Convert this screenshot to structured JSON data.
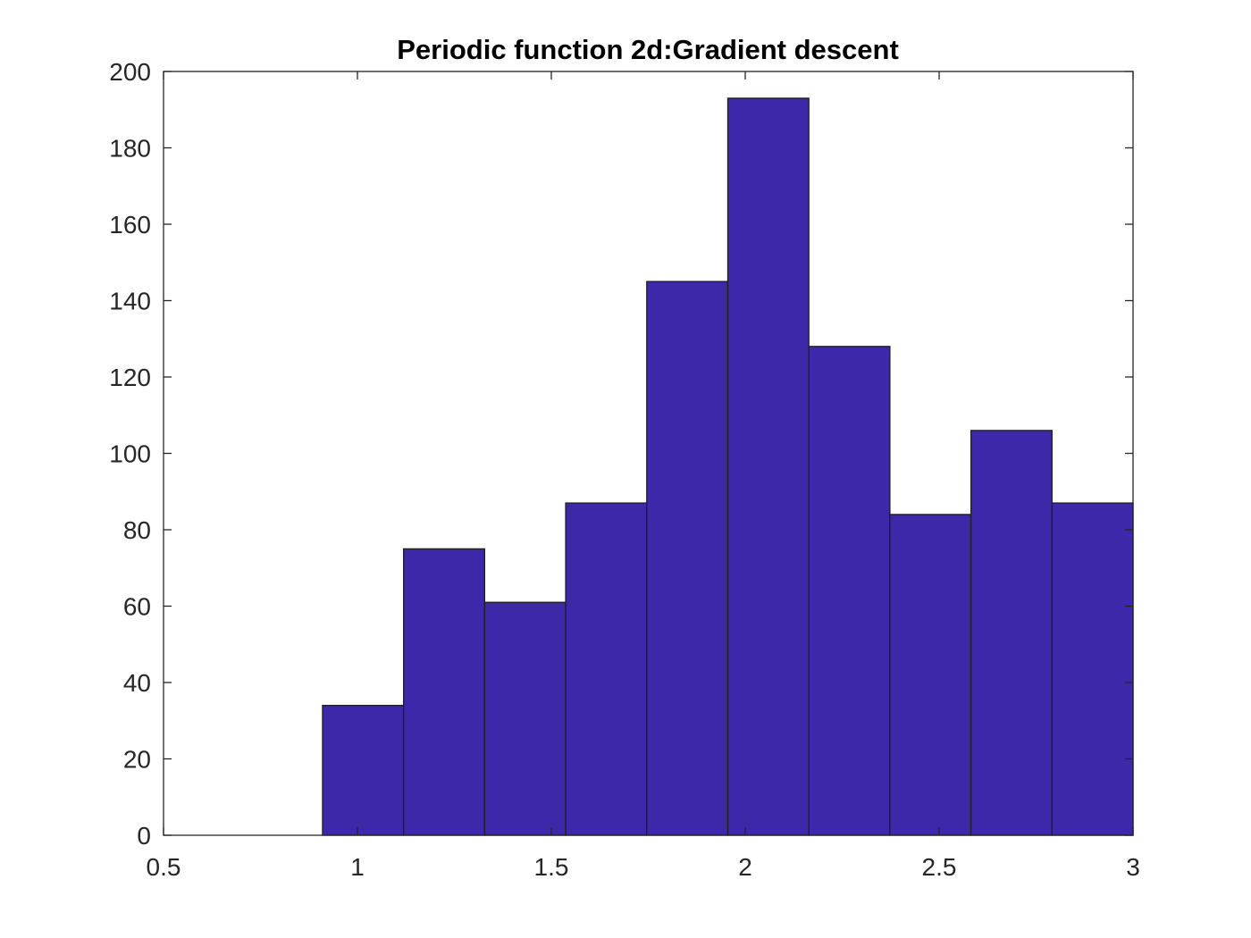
{
  "chart_data": {
    "type": "bar",
    "subtype": "histogram",
    "title": "Periodic function 2d:Gradient descent",
    "xlabel": "",
    "ylabel": "",
    "bin_edges": [
      0.91,
      1.119,
      1.328,
      1.537,
      1.746,
      1.955,
      2.164,
      2.373,
      2.582,
      2.791,
      3.0
    ],
    "values": [
      34,
      75,
      61,
      87,
      145,
      193,
      128,
      84,
      106,
      87
    ],
    "xlim": [
      0.5,
      3
    ],
    "ylim": [
      0,
      200
    ],
    "xticks": [
      "0.5",
      "1",
      "1.5",
      "2",
      "2.5",
      "3"
    ],
    "xtick_values": [
      0.5,
      1,
      1.5,
      2,
      2.5,
      3
    ],
    "yticks": [
      "0",
      "20",
      "40",
      "60",
      "80",
      "100",
      "120",
      "140",
      "160",
      "180",
      "200"
    ],
    "ytick_values": [
      0,
      20,
      40,
      60,
      80,
      100,
      120,
      140,
      160,
      180,
      200
    ],
    "grid": false,
    "box": true,
    "bar_color": "#3c28a8",
    "edge_color": "#1f1f1f"
  }
}
